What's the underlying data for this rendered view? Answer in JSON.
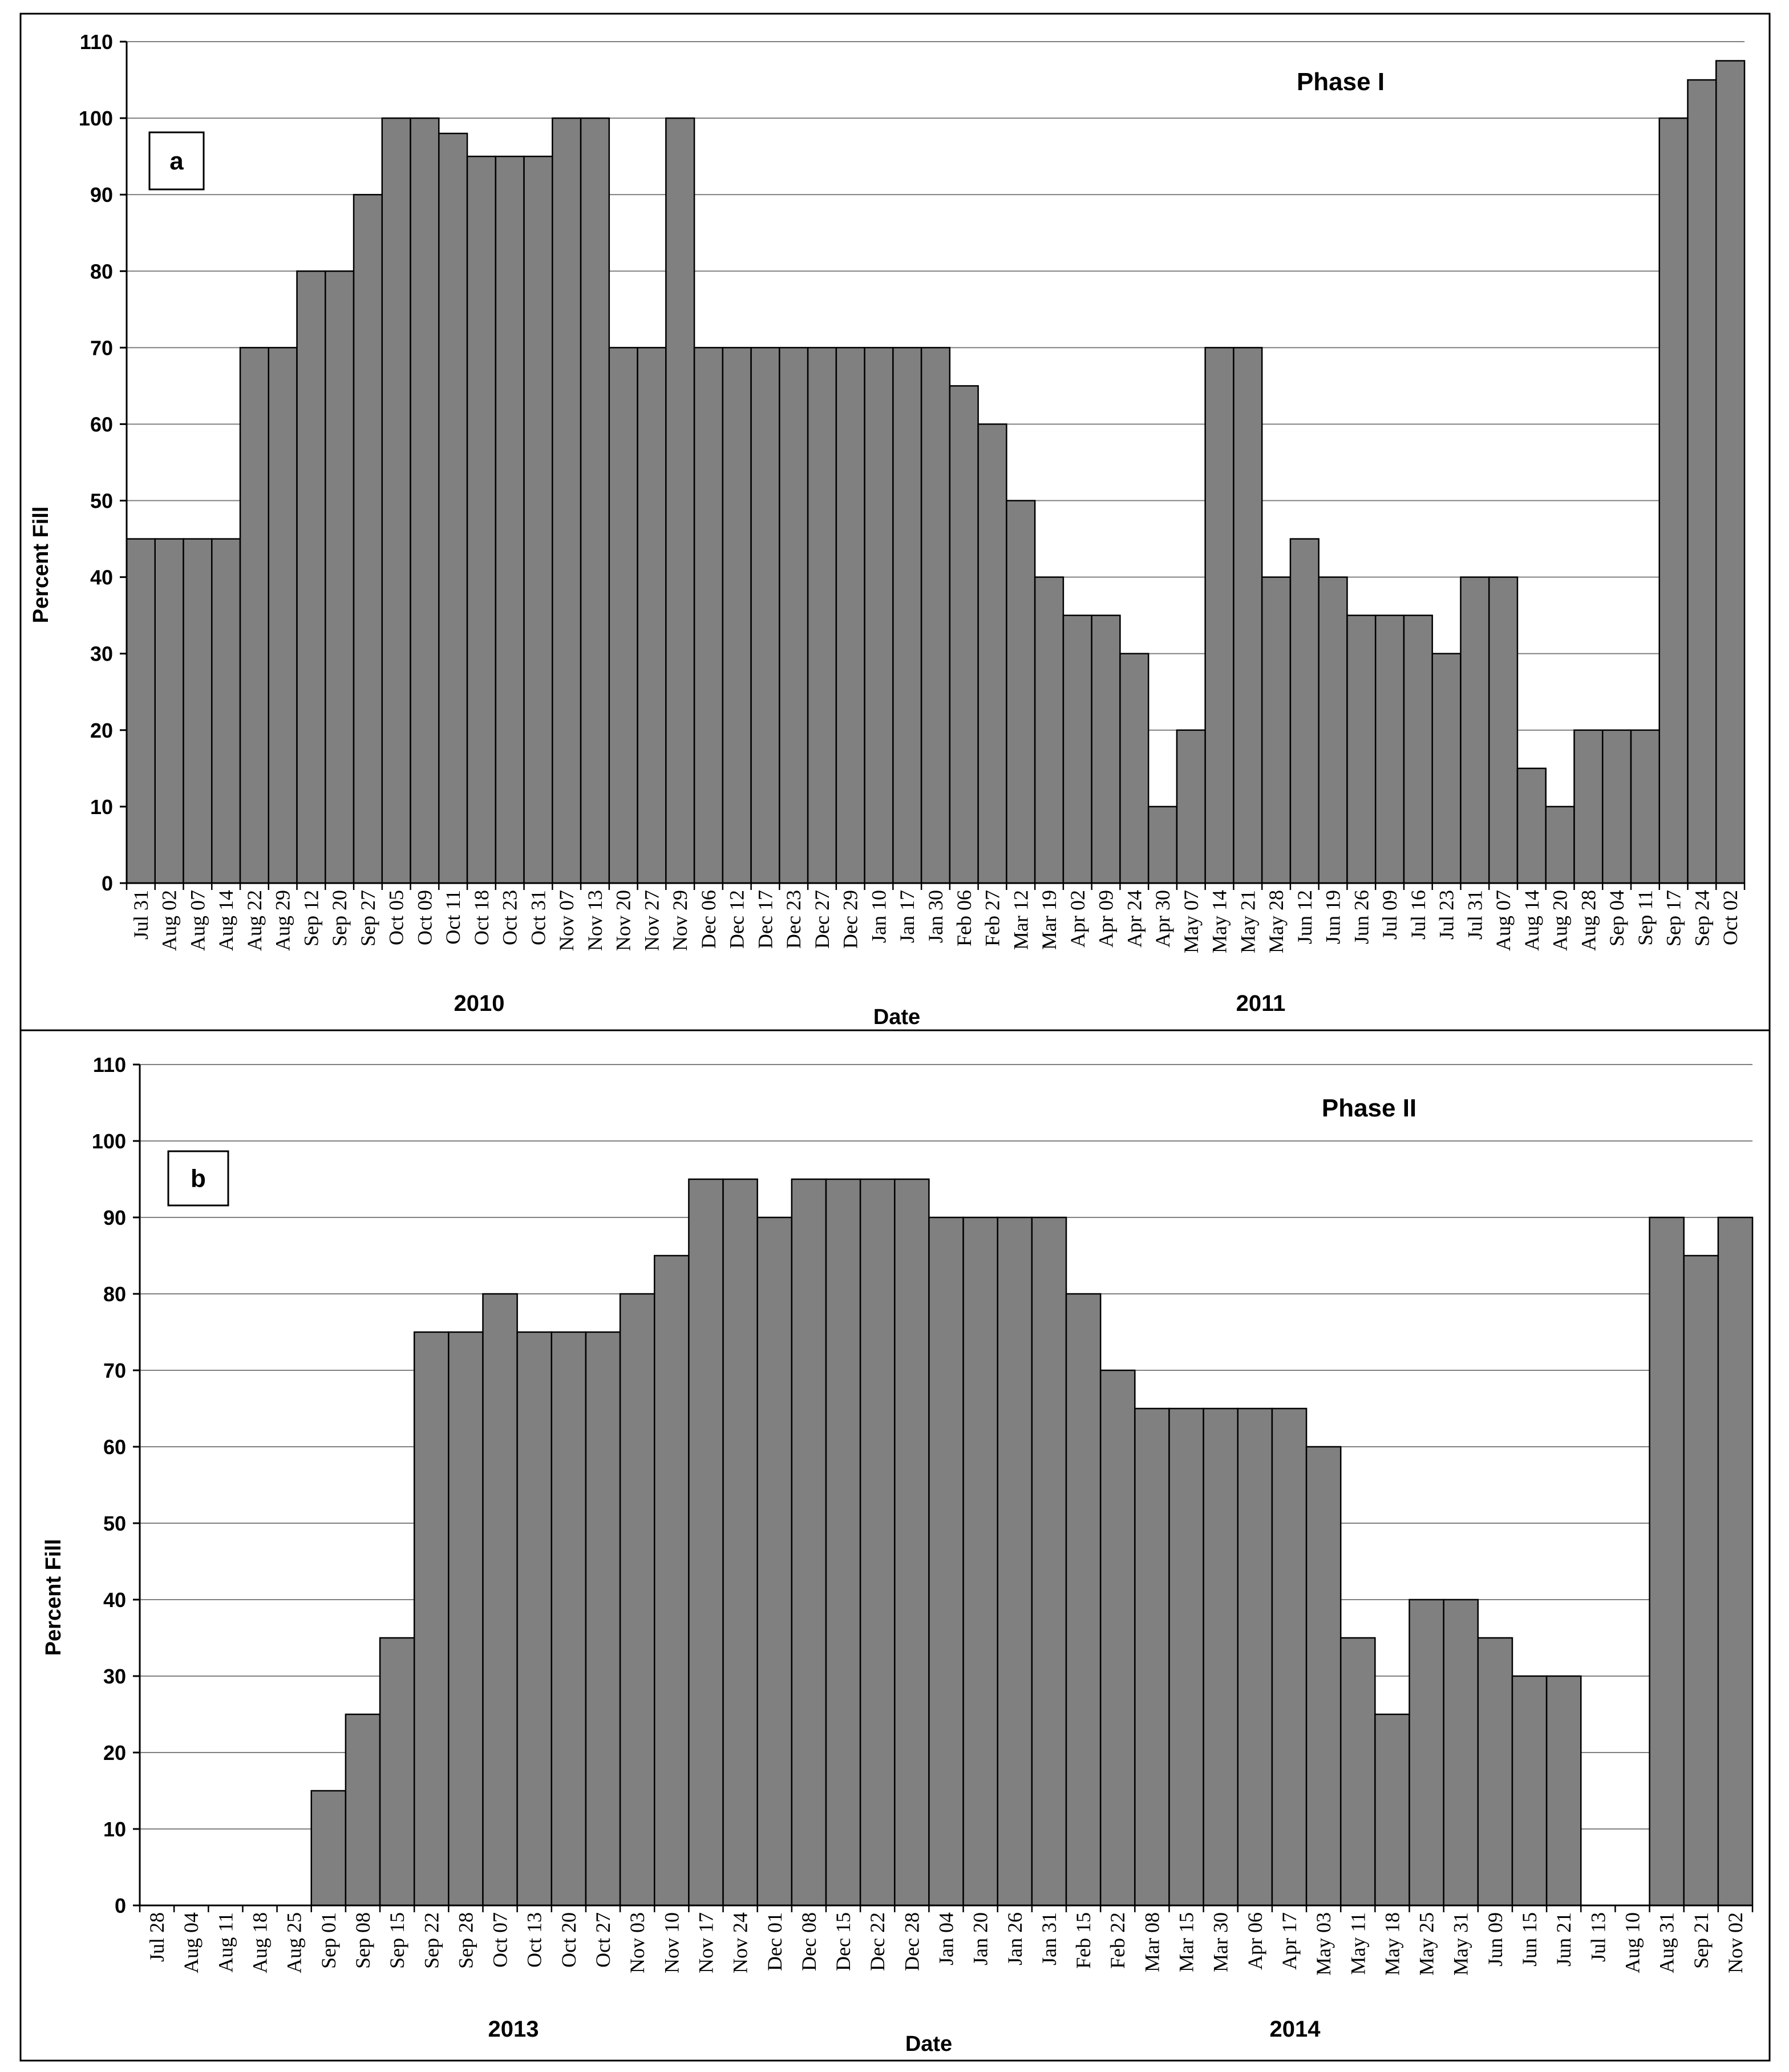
{
  "chart_data": [
    {
      "type": "bar",
      "panel_label": "a",
      "title": "Phase I",
      "xlabel": "Date",
      "ylabel": "Percent Fill",
      "year_labels": [
        "2010",
        "2011"
      ],
      "ylim": [
        0,
        110
      ],
      "yticks": [
        0,
        10,
        20,
        30,
        40,
        50,
        60,
        70,
        80,
        90,
        100,
        110
      ],
      "grid": true,
      "bar_color": "#808080",
      "categories": [
        "Jul 31",
        "Aug 02",
        "Aug 07",
        "Aug 14",
        "Aug 22",
        "Aug 29",
        "Sep 12",
        "Sep 20",
        "Sep 27",
        "Oct 05",
        "Oct 09",
        "Oct 11",
        "Oct 18",
        "Oct 23",
        "Oct 31",
        "Nov 07",
        "Nov 13",
        "Nov 20",
        "Nov 27",
        "Nov 29",
        "Dec 06",
        "Dec 12",
        "Dec 17",
        "Dec 23",
        "Dec 27",
        "Dec 29",
        "Jan 10",
        "Jan 17",
        "Jan 30",
        "Feb 06",
        "Feb 27",
        "Mar 12",
        "Mar 19",
        "Apr 02",
        "Apr 09",
        "Apr 24",
        "Apr 30",
        "May 07",
        "May 14",
        "May 21",
        "May 28",
        "Jun 12",
        "Jun 19",
        "Jun 26",
        "Jul 09",
        "Jul 16",
        "Jul 23",
        "Jul 31",
        "Aug 07",
        "Aug 14",
        "Aug 20",
        "Aug 28",
        "Sep 04",
        "Sep 11",
        "Sep 17",
        "Sep 24",
        "Oct 02"
      ],
      "values": [
        45,
        45,
        45,
        45,
        70,
        70,
        80,
        80,
        90,
        100,
        100,
        98,
        95,
        95,
        95,
        100,
        100,
        70,
        70,
        100,
        70,
        70,
        70,
        70,
        70,
        70,
        70,
        70,
        70,
        65,
        60,
        50,
        40,
        35,
        35,
        30,
        10,
        20,
        70,
        70,
        40,
        45,
        40,
        35,
        35,
        35,
        30,
        40,
        40,
        15,
        10,
        20,
        20,
        20,
        100,
        105,
        107.5
      ]
    },
    {
      "type": "bar",
      "panel_label": "b",
      "title": "Phase II",
      "xlabel": "Date",
      "ylabel": "Percent Fill",
      "year_labels": [
        "2013",
        "2014"
      ],
      "ylim": [
        0,
        110
      ],
      "yticks": [
        0,
        10,
        20,
        30,
        40,
        50,
        60,
        70,
        80,
        90,
        100,
        110
      ],
      "grid": true,
      "bar_color": "#808080",
      "categories": [
        "Jul 28",
        "Aug 04",
        "Aug 11",
        "Aug 18",
        "Aug 25",
        "Sep 01",
        "Sep 08",
        "Sep 15",
        "Sep 22",
        "Sep 28",
        "Oct 07",
        "Oct 13",
        "Oct 20",
        "Oct 27",
        "Nov 03",
        "Nov 10",
        "Nov 17",
        "Nov 24",
        "Dec 01",
        "Dec 08",
        "Dec 15",
        "Dec 22",
        "Dec 28",
        "Jan 04",
        "Jan 20",
        "Jan 26",
        "Jan 31",
        "Feb 15",
        "Feb 22",
        "Mar 08",
        "Mar 15",
        "Mar 30",
        "Apr 06",
        "Apr 17",
        "May 03",
        "May 11",
        "May 18",
        "May 25",
        "May 31",
        "Jun 09",
        "Jun 15",
        "Jun 21",
        "Jul 13",
        "Aug 10",
        "Aug 31",
        "Sep 21",
        "Nov 02"
      ],
      "values": [
        0,
        0,
        0,
        0,
        0,
        15,
        25,
        35,
        75,
        75,
        80,
        75,
        75,
        75,
        80,
        85,
        95,
        95,
        90,
        95,
        95,
        95,
        95,
        90,
        90,
        90,
        90,
        80,
        70,
        65,
        65,
        65,
        65,
        65,
        60,
        35,
        25,
        40,
        40,
        35,
        30,
        30,
        0,
        0,
        90,
        85,
        90
      ]
    }
  ]
}
